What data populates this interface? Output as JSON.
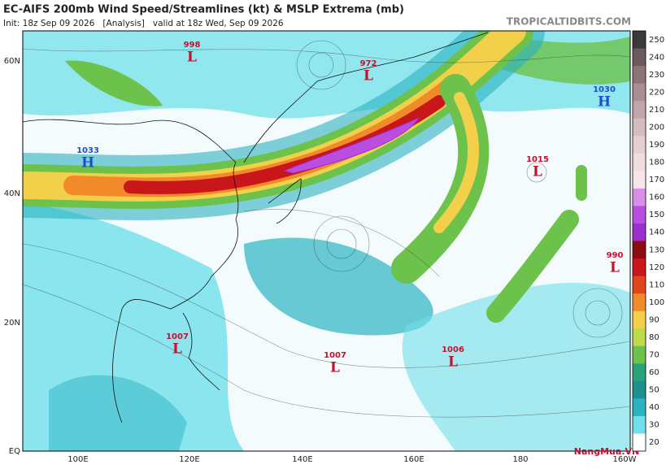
{
  "header": {
    "title": "EC-AIFS 200mb Wind Speed/Streamlines (kt) & MSLP Extrema (mb)",
    "subtitle": "Init: 18z Sep 09 2026   [Analysis]   valid at 18z Wed, Sep 09 2026",
    "source": "TROPICALTIDBITS.COM"
  },
  "map": {
    "lat_labels": [
      "60N",
      "40N",
      "20N",
      "EQ"
    ],
    "lon_labels": [
      "100E",
      "120E",
      "140E",
      "160E",
      "180",
      "160W"
    ],
    "pressure_centers": [
      {
        "value": "998",
        "symbol": "L"
      },
      {
        "value": "972",
        "symbol": "L"
      },
      {
        "value": "1030",
        "symbol": "H"
      },
      {
        "value": "1033",
        "symbol": "H"
      },
      {
        "value": "1015",
        "symbol": "L"
      },
      {
        "value": "990",
        "symbol": "L"
      },
      {
        "value": "1007",
        "symbol": "L"
      },
      {
        "value": "1007",
        "symbol": "L"
      },
      {
        "value": "1006",
        "symbol": "L"
      }
    ],
    "low_color": "#c8102e",
    "high_color": "#1f4fd0"
  },
  "colorbar": {
    "levels": [
      250,
      240,
      230,
      220,
      210,
      200,
      190,
      180,
      170,
      160,
      150,
      140,
      130,
      120,
      110,
      100,
      90,
      80,
      70,
      60,
      50,
      40,
      30,
      20
    ],
    "colors": [
      "#3a3a3a",
      "#6b5a5e",
      "#8e7479",
      "#a98e93",
      "#c0a6ab",
      "#d5bcc0",
      "#e6cfd3",
      "#f0dde0",
      "#f6e6ea",
      "#d98ee8",
      "#b94ee0",
      "#9b2fd0",
      "#8b0d12",
      "#c8161a",
      "#e0461c",
      "#f08a2a",
      "#f2d04a",
      "#bfd94a",
      "#6cc24a",
      "#2aa37a",
      "#1f8f92",
      "#2bb3c2",
      "#6fe0ea",
      "#ffffff"
    ]
  },
  "watermark": "NangMua.VN"
}
